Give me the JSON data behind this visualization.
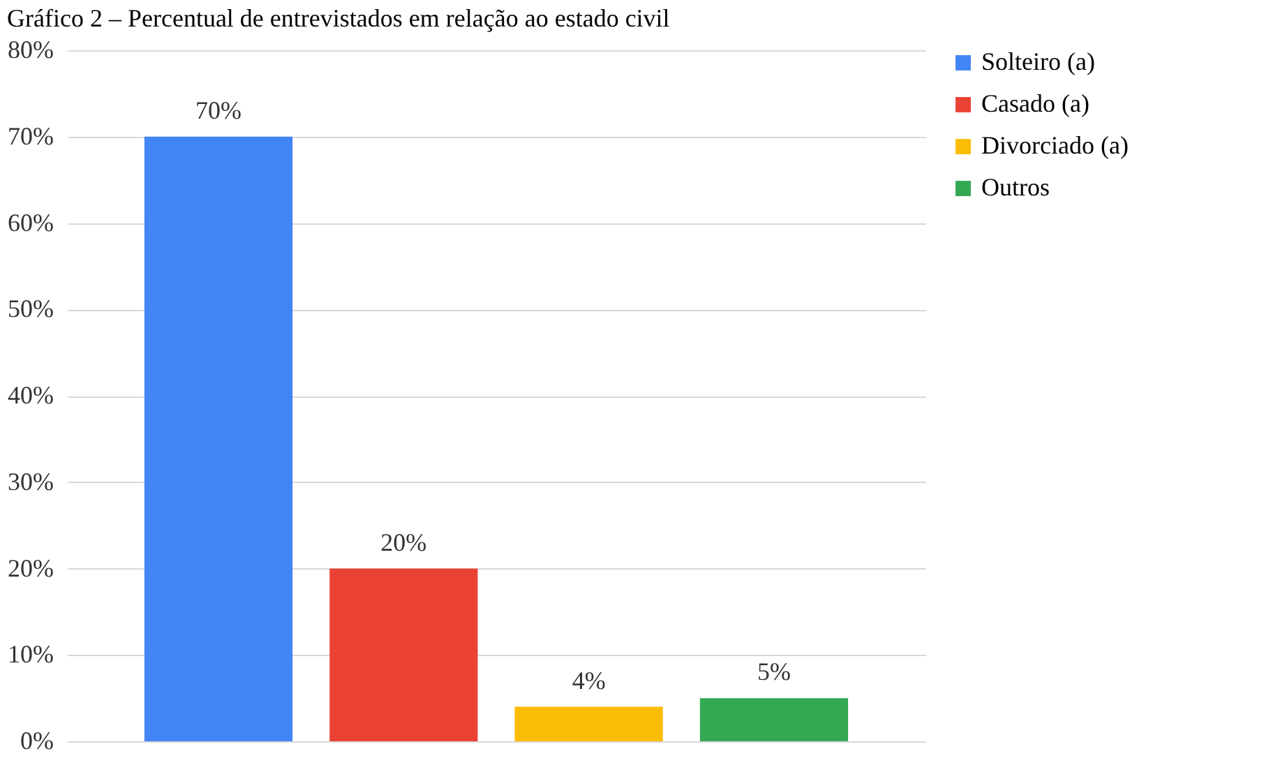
{
  "chart_data": {
    "type": "bar",
    "title": "Gráfico 2 – Percentual de entrevistados em relação ao estado civil",
    "categories": [
      null
    ],
    "series": [
      {
        "name": "Solteiro (a)",
        "color": "#4285f4",
        "values": [
          70
        ],
        "value_labels": [
          "70%"
        ]
      },
      {
        "name": "Casado (a)",
        "color": "#ea4335",
        "values": [
          20
        ],
        "value_labels": [
          "20%"
        ]
      },
      {
        "name": "Divorciado (a)",
        "color": "#fbbc04",
        "values": [
          4
        ],
        "value_labels": [
          "4%"
        ]
      },
      {
        "name": "Outros",
        "color": "#34a853",
        "values": [
          5
        ],
        "value_labels": [
          "5%"
        ]
      }
    ],
    "ylim": [
      0,
      80
    ],
    "yticks": [
      {
        "value": 0,
        "label": "0%"
      },
      {
        "value": 10,
        "label": "10%"
      },
      {
        "value": 20,
        "label": "20%"
      },
      {
        "value": 30,
        "label": "30%"
      },
      {
        "value": 40,
        "label": "40%"
      },
      {
        "value": 50,
        "label": "50%"
      },
      {
        "value": 60,
        "label": "60%"
      },
      {
        "value": 70,
        "label": "70%"
      },
      {
        "value": 80,
        "label": "80%"
      }
    ],
    "grid": "y",
    "legend": "right"
  }
}
